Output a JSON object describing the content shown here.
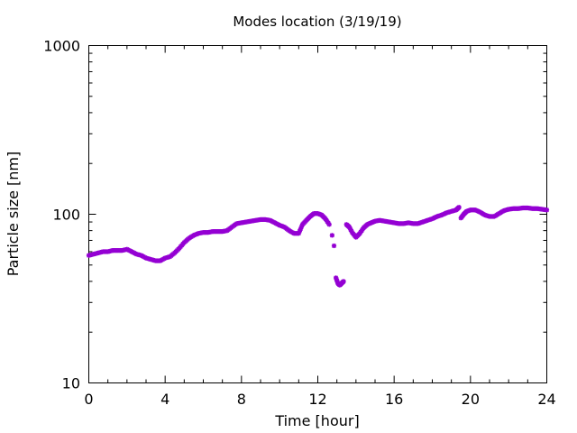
{
  "chart_data": {
    "type": "scatter",
    "title": "Modes location (3/19/19)",
    "xlabel": "Time [hour]",
    "ylabel": "Particle size [nm]",
    "xlim": [
      0,
      24
    ],
    "ylim": [
      10,
      1000
    ],
    "yscale": "log",
    "x_ticks": [
      "0",
      "4",
      "8",
      "12",
      "16",
      "20",
      "24"
    ],
    "y_ticks": [
      "10",
      "100",
      "1000"
    ],
    "grid": false,
    "marker_color": "#9400d3",
    "series": [
      {
        "points": [
          [
            0.0,
            57
          ],
          [
            0.25,
            58
          ],
          [
            0.5,
            59
          ],
          [
            0.75,
            60
          ],
          [
            1.0,
            60
          ],
          [
            1.25,
            61
          ],
          [
            1.5,
            61
          ],
          [
            1.75,
            61
          ],
          [
            2.0,
            62
          ],
          [
            2.25,
            60
          ],
          [
            2.5,
            58
          ],
          [
            2.75,
            57
          ],
          [
            3.0,
            55
          ],
          [
            3.25,
            54
          ],
          [
            3.5,
            53
          ],
          [
            3.75,
            53
          ],
          [
            4.0,
            55
          ],
          [
            4.25,
            56
          ],
          [
            4.5,
            59
          ],
          [
            4.75,
            63
          ],
          [
            5.0,
            68
          ],
          [
            5.25,
            72
          ],
          [
            5.5,
            75
          ],
          [
            5.75,
            77
          ],
          [
            6.0,
            78
          ],
          [
            6.25,
            78
          ],
          [
            6.5,
            79
          ],
          [
            6.75,
            79
          ],
          [
            7.0,
            79
          ],
          [
            7.25,
            80
          ],
          [
            7.5,
            84
          ],
          [
            7.75,
            88
          ],
          [
            8.0,
            89
          ],
          [
            8.25,
            90
          ],
          [
            8.5,
            91
          ],
          [
            8.75,
            92
          ],
          [
            9.0,
            93
          ],
          [
            9.25,
            93
          ],
          [
            9.5,
            92
          ],
          [
            9.75,
            89
          ],
          [
            10.0,
            86
          ],
          [
            10.25,
            84
          ],
          [
            10.5,
            80
          ],
          [
            10.75,
            77
          ],
          [
            11.0,
            77
          ],
          [
            11.2,
            87
          ],
          [
            11.4,
            92
          ],
          [
            11.6,
            97
          ],
          [
            11.8,
            101
          ],
          [
            12.0,
            101
          ],
          [
            12.2,
            99
          ],
          [
            12.4,
            94
          ],
          [
            12.6,
            87
          ],
          [
            12.75,
            75
          ],
          [
            12.85,
            65
          ],
          [
            12.95,
            42
          ],
          [
            13.05,
            39
          ],
          [
            13.15,
            38
          ],
          [
            13.25,
            39
          ],
          [
            13.35,
            40
          ],
          [
            13.5,
            87
          ],
          [
            13.65,
            84
          ],
          [
            13.8,
            78
          ],
          [
            14.0,
            73
          ],
          [
            14.2,
            77
          ],
          [
            14.4,
            83
          ],
          [
            14.6,
            87
          ],
          [
            14.8,
            89
          ],
          [
            15.0,
            91
          ],
          [
            15.25,
            92
          ],
          [
            15.5,
            91
          ],
          [
            15.75,
            90
          ],
          [
            16.0,
            89
          ],
          [
            16.25,
            88
          ],
          [
            16.5,
            88
          ],
          [
            16.75,
            89
          ],
          [
            17.0,
            88
          ],
          [
            17.25,
            88
          ],
          [
            17.5,
            90
          ],
          [
            17.75,
            92
          ],
          [
            18.0,
            94
          ],
          [
            18.25,
            97
          ],
          [
            18.5,
            99
          ],
          [
            18.75,
            102
          ],
          [
            19.0,
            104
          ],
          [
            19.25,
            106
          ],
          [
            19.4,
            110
          ],
          [
            19.5,
            95
          ],
          [
            19.65,
            100
          ],
          [
            19.8,
            104
          ],
          [
            20.0,
            106
          ],
          [
            20.25,
            106
          ],
          [
            20.5,
            103
          ],
          [
            20.75,
            99
          ],
          [
            21.0,
            97
          ],
          [
            21.25,
            97
          ],
          [
            21.5,
            101
          ],
          [
            21.75,
            105
          ],
          [
            22.0,
            107
          ],
          [
            22.25,
            108
          ],
          [
            22.5,
            108
          ],
          [
            22.75,
            109
          ],
          [
            23.0,
            109
          ],
          [
            23.25,
            108
          ],
          [
            23.5,
            108
          ],
          [
            23.75,
            107
          ],
          [
            24.0,
            106
          ]
        ]
      }
    ]
  }
}
